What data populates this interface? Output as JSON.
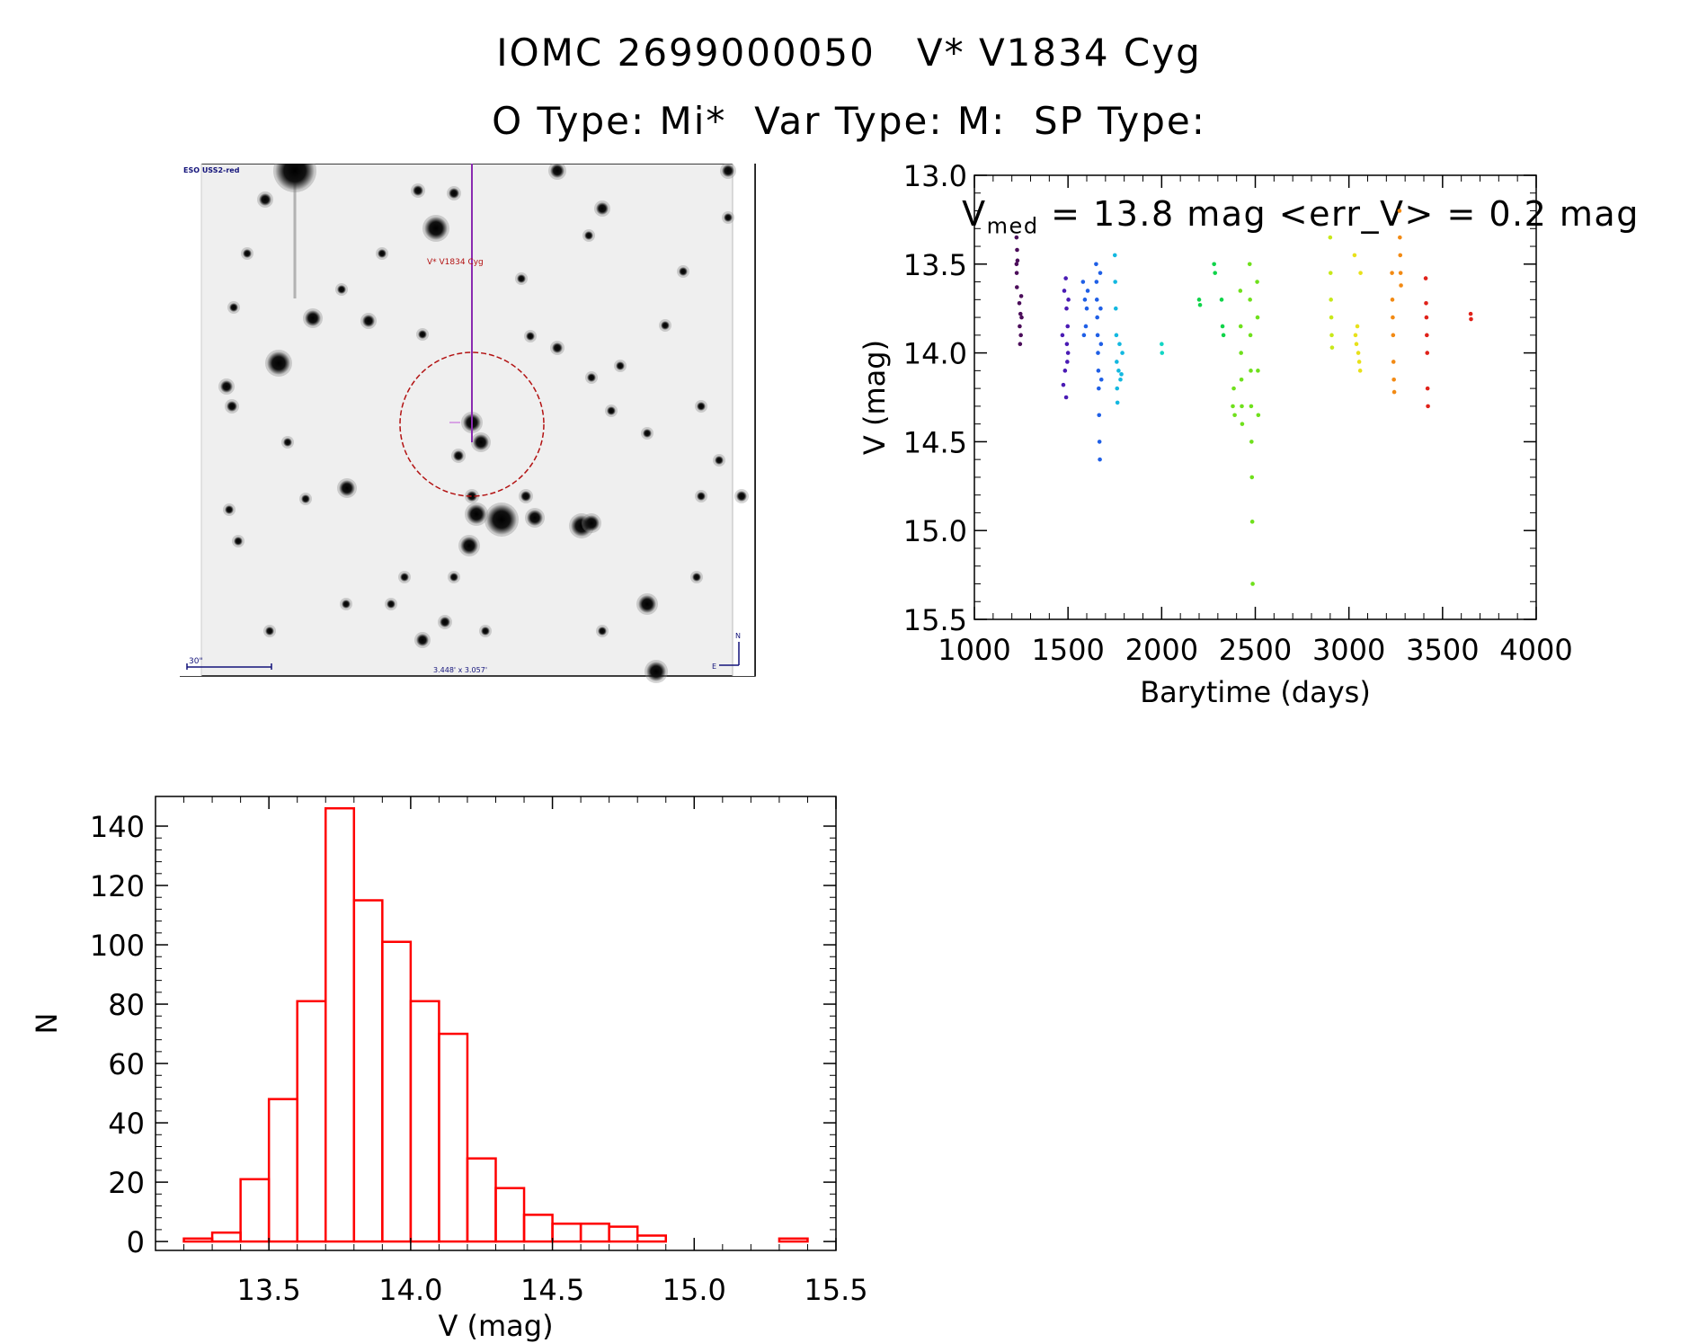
{
  "header": {
    "line1": "IOMC 2699000050   V* V1834 Cyg",
    "line2": "O Type: Mi*  Var Type: M:  SP Type:"
  },
  "image_panel": {
    "survey_label": "ESO USS2-red",
    "target_label": "V* V1834 Cyg",
    "scale_label": "30\"",
    "size_label": "3.448' x 3.057'",
    "north_label": "N",
    "east_label": "E"
  },
  "lightcurve_title": {
    "v_prefix": "V",
    "v_sub": "med",
    "rest": " = 13.8 mag <err_V> = 0.2 mag"
  },
  "chart_data": [
    {
      "type": "scatter",
      "title": "V med = 13.8 mag <err_V> = 0.2 mag",
      "xlabel": "Barytime (days)",
      "ylabel": "V (mag)",
      "xlim": [
        1000,
        4000
      ],
      "ylim": [
        15.5,
        13.0
      ],
      "xticks": [
        1000,
        1500,
        2000,
        2500,
        3000,
        3500,
        4000
      ],
      "yticks": [
        13.0,
        13.5,
        14.0,
        14.5,
        15.0,
        15.5
      ],
      "series": [
        {
          "name": "seg1",
          "color": "#4b0d5a",
          "points": [
            [
              1225,
              13.35
            ],
            [
              1225,
              13.5
            ],
            [
              1226,
              13.55
            ],
            [
              1227,
              13.63
            ],
            [
              1228,
              13.42
            ],
            [
              1230,
              13.48
            ],
            [
              1240,
              13.72
            ],
            [
              1242,
              13.85
            ],
            [
              1244,
              13.95
            ],
            [
              1246,
              13.78
            ],
            [
              1248,
              13.9
            ],
            [
              1250,
              13.68
            ],
            [
              1252,
              13.8
            ]
          ]
        },
        {
          "name": "seg2",
          "color": "#4a1bb4",
          "points": [
            [
              1470,
              13.9
            ],
            [
              1475,
              14.18
            ],
            [
              1480,
              13.65
            ],
            [
              1484,
              14.1
            ],
            [
              1488,
              13.58
            ],
            [
              1490,
              14.25
            ],
            [
              1492,
              13.75
            ],
            [
              1494,
              13.95
            ],
            [
              1496,
              14.05
            ],
            [
              1498,
              13.85
            ],
            [
              1500,
              14.0
            ],
            [
              1502,
              13.7
            ]
          ]
        },
        {
          "name": "seg3",
          "color": "#1f5fe6",
          "points": [
            [
              1580,
              13.6
            ],
            [
              1585,
              13.9
            ],
            [
              1590,
              13.7
            ],
            [
              1595,
              13.85
            ],
            [
              1600,
              13.75
            ],
            [
              1605,
              13.65
            ],
            [
              1650,
              13.5
            ],
            [
              1652,
              13.6
            ],
            [
              1654,
              13.7
            ],
            [
              1656,
              13.8
            ],
            [
              1658,
              13.9
            ],
            [
              1660,
              14.0
            ],
            [
              1662,
              14.1
            ],
            [
              1664,
              14.2
            ],
            [
              1666,
              14.35
            ],
            [
              1668,
              14.5
            ],
            [
              1670,
              14.6
            ],
            [
              1672,
              13.55
            ],
            [
              1674,
              13.75
            ],
            [
              1676,
              13.95
            ],
            [
              1678,
              14.15
            ]
          ]
        },
        {
          "name": "seg4",
          "color": "#13b8e0",
          "points": [
            [
              1750,
              13.45
            ],
            [
              1752,
              13.6
            ],
            [
              1755,
              13.75
            ],
            [
              1758,
              13.9
            ],
            [
              1760,
              14.05
            ],
            [
              1762,
              14.2
            ],
            [
              1764,
              14.28
            ],
            [
              1770,
              14.1
            ],
            [
              1775,
              13.95
            ],
            [
              1780,
              14.15
            ],
            [
              1785,
              14.12
            ],
            [
              1790,
              14.0
            ]
          ]
        },
        {
          "name": "seg5",
          "color": "#12d6c4",
          "points": [
            [
              2000,
              13.95
            ],
            [
              2002,
              14.0
            ]
          ]
        },
        {
          "name": "seg6",
          "color": "#10d44a",
          "points": [
            [
              2200,
              13.7
            ],
            [
              2205,
              13.73
            ],
            [
              2280,
              13.5
            ],
            [
              2285,
              13.55
            ],
            [
              2320,
              13.7
            ],
            [
              2325,
              13.85
            ],
            [
              2330,
              13.9
            ]
          ]
        },
        {
          "name": "seg7",
          "color": "#6fe01c",
          "points": [
            [
              2380,
              14.3
            ],
            [
              2385,
              14.2
            ],
            [
              2390,
              14.35
            ],
            [
              2420,
              13.65
            ],
            [
              2422,
              13.85
            ],
            [
              2424,
              14.0
            ],
            [
              2426,
              14.15
            ],
            [
              2428,
              14.3
            ],
            [
              2430,
              14.4
            ],
            [
              2470,
              13.5
            ],
            [
              2472,
              13.7
            ],
            [
              2474,
              13.9
            ],
            [
              2476,
              14.1
            ],
            [
              2478,
              14.3
            ],
            [
              2480,
              14.5
            ],
            [
              2482,
              14.7
            ],
            [
              2484,
              14.95
            ],
            [
              2486,
              15.3
            ],
            [
              2510,
              13.6
            ],
            [
              2512,
              13.8
            ],
            [
              2514,
              14.1
            ],
            [
              2516,
              14.35
            ]
          ]
        },
        {
          "name": "seg8",
          "color": "#c8e81a",
          "points": [
            [
              2900,
              13.35
            ],
            [
              2902,
              13.55
            ],
            [
              2904,
              13.7
            ],
            [
              2906,
              13.8
            ],
            [
              2908,
              13.9
            ],
            [
              2910,
              13.97
            ]
          ]
        },
        {
          "name": "seg9",
          "color": "#e8e11a",
          "points": [
            [
              3030,
              13.45
            ],
            [
              3035,
              13.9
            ],
            [
              3040,
              13.95
            ],
            [
              3045,
              13.85
            ],
            [
              3050,
              14.0
            ],
            [
              3055,
              14.05
            ],
            [
              3060,
              14.1
            ],
            [
              3062,
              13.55
            ]
          ]
        },
        {
          "name": "seg10",
          "color": "#f28a14",
          "points": [
            [
              3230,
              13.55
            ],
            [
              3232,
              13.7
            ],
            [
              3234,
              13.8
            ],
            [
              3236,
              13.9
            ],
            [
              3238,
              14.05
            ],
            [
              3240,
              14.15
            ],
            [
              3242,
              14.22
            ],
            [
              3270,
              13.2
            ],
            [
              3272,
              13.35
            ],
            [
              3274,
              13.45
            ],
            [
              3276,
              13.55
            ],
            [
              3278,
              13.62
            ]
          ]
        },
        {
          "name": "seg11",
          "color": "#e0221a",
          "points": [
            [
              3410,
              13.58
            ],
            [
              3412,
              13.72
            ],
            [
              3414,
              13.8
            ],
            [
              3416,
              13.9
            ],
            [
              3418,
              14.0
            ],
            [
              3420,
              14.2
            ],
            [
              3422,
              14.3
            ],
            [
              3650,
              13.78
            ],
            [
              3652,
              13.81
            ]
          ]
        }
      ]
    },
    {
      "type": "bar",
      "title": "",
      "xlabel": "V (mag)",
      "ylabel": "N",
      "xlim": [
        13.1,
        15.5
      ],
      "ylim": [
        -3,
        150
      ],
      "xticks": [
        13.5,
        14.0,
        14.5,
        15.0,
        15.5
      ],
      "yticks": [
        0,
        20,
        40,
        60,
        80,
        100,
        120,
        140
      ],
      "bin_width": 0.1,
      "bin_starts": [
        13.2,
        13.3,
        13.4,
        13.5,
        13.6,
        13.7,
        13.8,
        13.9,
        14.0,
        14.1,
        14.2,
        14.3,
        14.4,
        14.5,
        14.6,
        14.7,
        14.8,
        14.9,
        15.0,
        15.1,
        15.2,
        15.3
      ],
      "values": [
        1,
        3,
        21,
        48,
        81,
        146,
        115,
        101,
        81,
        70,
        28,
        18,
        9,
        6,
        6,
        5,
        2,
        0,
        0,
        0,
        0,
        1
      ],
      "bar_color": "#ff0000"
    }
  ]
}
